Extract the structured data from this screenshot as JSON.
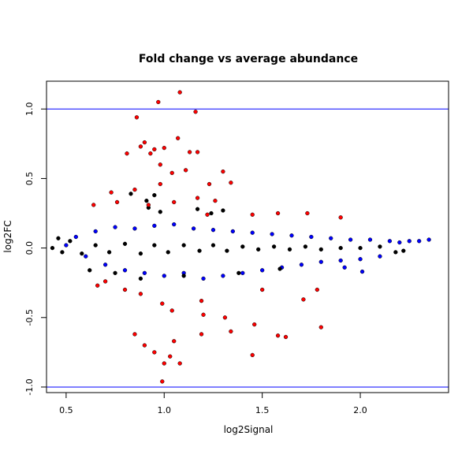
{
  "chart_data": {
    "type": "scatter",
    "title": "Fold change vs average abundance",
    "xlabel": "log2Signal",
    "ylabel": "log2FC",
    "xlim": [
      0.4,
      2.45
    ],
    "ylim": [
      -1.04,
      1.2
    ],
    "xticks": [
      {
        "value": 0.5,
        "label": "0.5"
      },
      {
        "value": 1.0,
        "label": "1.0"
      },
      {
        "value": 1.5,
        "label": "1.5"
      },
      {
        "value": 2.0,
        "label": "2.0"
      }
    ],
    "yticks": [
      {
        "value": -1.0,
        "label": "-1.0"
      },
      {
        "value": -0.5,
        "label": "-0.5"
      },
      {
        "value": 0.0,
        "label": "0.0"
      },
      {
        "value": 0.5,
        "label": "0.5"
      },
      {
        "value": 1.0,
        "label": "1.0"
      }
    ],
    "hlines": [
      {
        "y": 1.0,
        "color": "#0000ff"
      },
      {
        "y": -1.0,
        "color": "#0000ff"
      }
    ],
    "grid": false,
    "legend": "none",
    "series": [
      {
        "color": "#0000ff",
        "description_points": "dense band of blue points",
        "points": [
          [
            0.5,
            0.02
          ],
          [
            0.55,
            0.08
          ],
          [
            0.6,
            -0.06
          ],
          [
            0.65,
            0.12
          ],
          [
            0.7,
            -0.12
          ],
          [
            0.75,
            0.15
          ],
          [
            0.8,
            -0.16
          ],
          [
            0.85,
            0.14
          ],
          [
            0.9,
            -0.18
          ],
          [
            0.95,
            0.16
          ],
          [
            1.0,
            -0.2
          ],
          [
            1.05,
            0.17
          ],
          [
            1.1,
            -0.18
          ],
          [
            1.15,
            0.14
          ],
          [
            1.2,
            -0.22
          ],
          [
            1.25,
            0.13
          ],
          [
            1.3,
            -0.2
          ],
          [
            1.35,
            0.12
          ],
          [
            1.4,
            -0.18
          ],
          [
            1.45,
            0.11
          ],
          [
            1.5,
            -0.16
          ],
          [
            1.55,
            0.1
          ],
          [
            1.6,
            -0.14
          ],
          [
            1.65,
            0.09
          ],
          [
            1.7,
            -0.12
          ],
          [
            1.75,
            0.08
          ],
          [
            1.8,
            -0.1
          ],
          [
            1.85,
            0.07
          ],
          [
            1.9,
            -0.09
          ],
          [
            1.95,
            0.06
          ],
          [
            2.0,
            -0.08
          ],
          [
            2.05,
            0.06
          ],
          [
            2.1,
            -0.06
          ],
          [
            2.15,
            0.05
          ],
          [
            2.2,
            0.04
          ],
          [
            2.25,
            0.05
          ],
          [
            2.3,
            0.05
          ],
          [
            2.35,
            0.06
          ],
          [
            1.92,
            -0.14
          ],
          [
            2.01,
            -0.17
          ]
        ]
      },
      {
        "color": "#000000",
        "description_points": "central black points",
        "points": [
          [
            0.43,
            0.0
          ],
          [
            0.46,
            0.07
          ],
          [
            0.48,
            -0.03
          ],
          [
            0.52,
            0.05
          ],
          [
            0.58,
            -0.04
          ],
          [
            0.65,
            0.02
          ],
          [
            0.72,
            -0.03
          ],
          [
            0.8,
            0.03
          ],
          [
            0.88,
            -0.04
          ],
          [
            0.95,
            0.02
          ],
          [
            1.02,
            -0.03
          ],
          [
            1.1,
            0.02
          ],
          [
            1.18,
            -0.02
          ],
          [
            1.25,
            0.02
          ],
          [
            1.32,
            -0.02
          ],
          [
            1.4,
            0.01
          ],
          [
            1.48,
            -0.01
          ],
          [
            1.56,
            0.01
          ],
          [
            1.64,
            -0.01
          ],
          [
            1.72,
            0.01
          ],
          [
            1.8,
            -0.01
          ],
          [
            1.9,
            0.0
          ],
          [
            2.0,
            0.0
          ],
          [
            2.1,
            0.01
          ],
          [
            2.18,
            -0.03
          ],
          [
            2.22,
            -0.02
          ],
          [
            0.83,
            0.39
          ],
          [
            0.95,
            0.38
          ],
          [
            0.91,
            0.34
          ],
          [
            0.92,
            0.29
          ],
          [
            1.17,
            0.28
          ],
          [
            1.24,
            0.25
          ],
          [
            1.3,
            0.27
          ],
          [
            0.98,
            0.26
          ],
          [
            0.62,
            -0.16
          ],
          [
            0.75,
            -0.18
          ],
          [
            0.88,
            -0.22
          ],
          [
            1.1,
            -0.2
          ],
          [
            1.38,
            -0.18
          ],
          [
            1.59,
            -0.15
          ]
        ]
      },
      {
        "color": "#ff0000",
        "description_points": "outlier red points",
        "points": [
          [
            0.97,
            1.05
          ],
          [
            1.08,
            1.12
          ],
          [
            1.16,
            0.98
          ],
          [
            0.86,
            0.94
          ],
          [
            0.88,
            0.73
          ],
          [
            0.9,
            0.76
          ],
          [
            0.95,
            0.71
          ],
          [
            1.0,
            0.72
          ],
          [
            1.07,
            0.79
          ],
          [
            0.93,
            0.68
          ],
          [
            1.13,
            0.69
          ],
          [
            1.17,
            0.69
          ],
          [
            0.81,
            0.68
          ],
          [
            0.98,
            0.6
          ],
          [
            1.3,
            0.55
          ],
          [
            1.04,
            0.54
          ],
          [
            1.11,
            0.56
          ],
          [
            1.34,
            0.47
          ],
          [
            1.23,
            0.46
          ],
          [
            0.98,
            0.46
          ],
          [
            0.85,
            0.42
          ],
          [
            0.73,
            0.4
          ],
          [
            0.64,
            0.31
          ],
          [
            0.76,
            0.33
          ],
          [
            0.92,
            0.31
          ],
          [
            1.05,
            0.33
          ],
          [
            1.17,
            0.36
          ],
          [
            1.26,
            0.34
          ],
          [
            1.45,
            0.24
          ],
          [
            1.58,
            0.25
          ],
          [
            1.73,
            0.25
          ],
          [
            1.9,
            0.22
          ],
          [
            1.22,
            0.24
          ],
          [
            0.7,
            -0.24
          ],
          [
            0.66,
            -0.27
          ],
          [
            0.88,
            -0.33
          ],
          [
            0.99,
            -0.4
          ],
          [
            1.04,
            -0.45
          ],
          [
            1.2,
            -0.48
          ],
          [
            1.31,
            -0.5
          ],
          [
            1.46,
            -0.55
          ],
          [
            1.58,
            -0.63
          ],
          [
            1.62,
            -0.64
          ],
          [
            1.34,
            -0.6
          ],
          [
            1.19,
            -0.62
          ],
          [
            1.05,
            -0.67
          ],
          [
            0.85,
            -0.62
          ],
          [
            0.9,
            -0.7
          ],
          [
            0.95,
            -0.75
          ],
          [
            1.03,
            -0.78
          ],
          [
            1.08,
            -0.83
          ],
          [
            1.0,
            -0.83
          ],
          [
            0.99,
            -0.96
          ],
          [
            1.45,
            -0.77
          ],
          [
            1.19,
            -0.38
          ],
          [
            1.71,
            -0.37
          ],
          [
            1.8,
            -0.57
          ],
          [
            1.78,
            -0.3
          ],
          [
            1.5,
            -0.3
          ],
          [
            0.8,
            -0.3
          ]
        ]
      }
    ]
  }
}
